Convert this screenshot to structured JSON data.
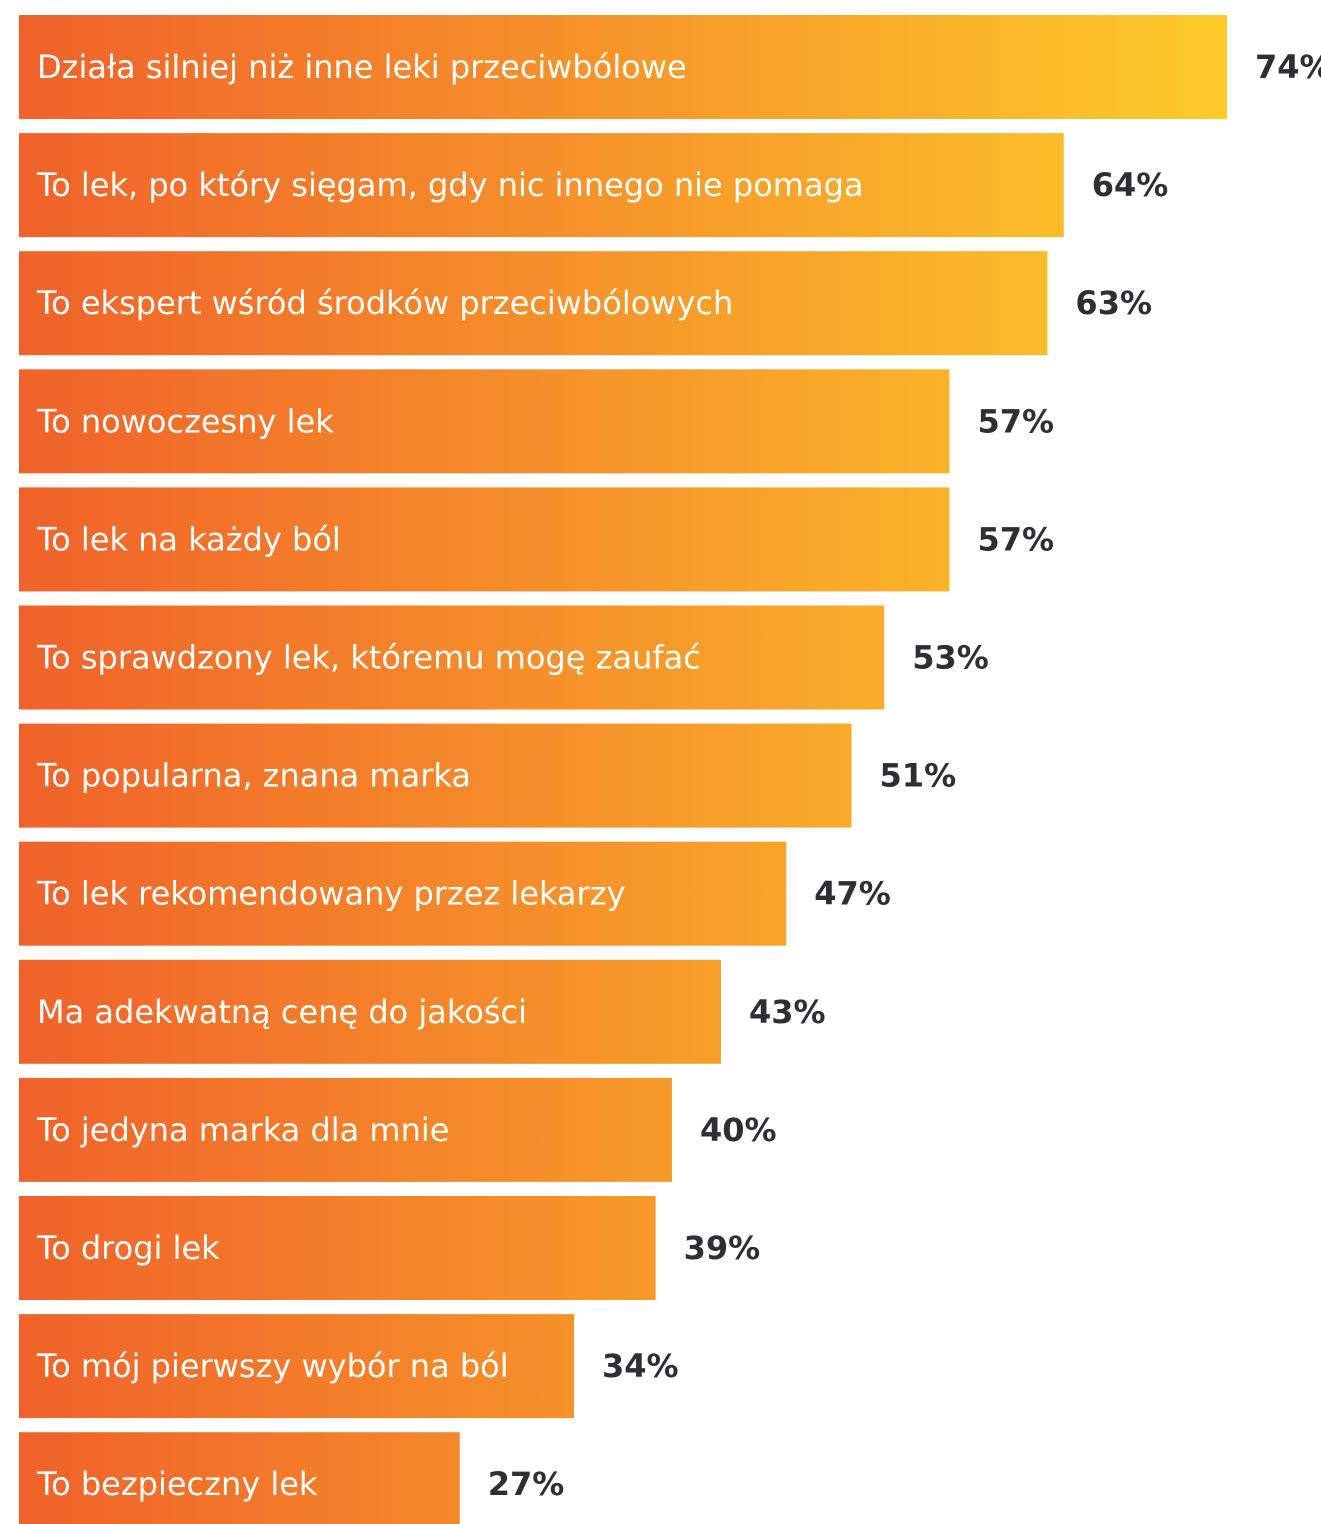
{
  "chart_data": {
    "type": "bar",
    "orientation": "horizontal",
    "categories": [
      "Działa silniej niż inne leki przeciwbólowe",
      "To lek, po który sięgam, gdy nic innego nie pomaga",
      "To ekspert wśród środków przeciwbólowych",
      "To nowoczesny lek",
      "To lek na każdy ból",
      "To sprawdzony lek, któremu mogę zaufać",
      "To popularna, znana marka",
      "To lek rekomendowany przez lekarzy",
      "Ma adekwatną cenę do jakości",
      "To jedyna marka dla mnie",
      "To drogi lek",
      "To mój pierwszy wybór na ból",
      "To bezpieczny lek"
    ],
    "values": [
      74,
      64,
      63,
      57,
      57,
      53,
      51,
      47,
      43,
      40,
      39,
      34,
      27
    ],
    "value_labels": [
      "74%",
      "64%",
      "63%",
      "57%",
      "57%",
      "53%",
      "51%",
      "47%",
      "43%",
      "40%",
      "39%",
      "34%",
      "27%"
    ],
    "unit": "%",
    "xlim": [
      0,
      74
    ],
    "grid": false,
    "legend": "none",
    "colors": {
      "gradient_start": "#f0622a",
      "gradient_end": "#fdcb2a",
      "value_text": "#2f2f33",
      "bar_text": "#ffffff"
    }
  }
}
